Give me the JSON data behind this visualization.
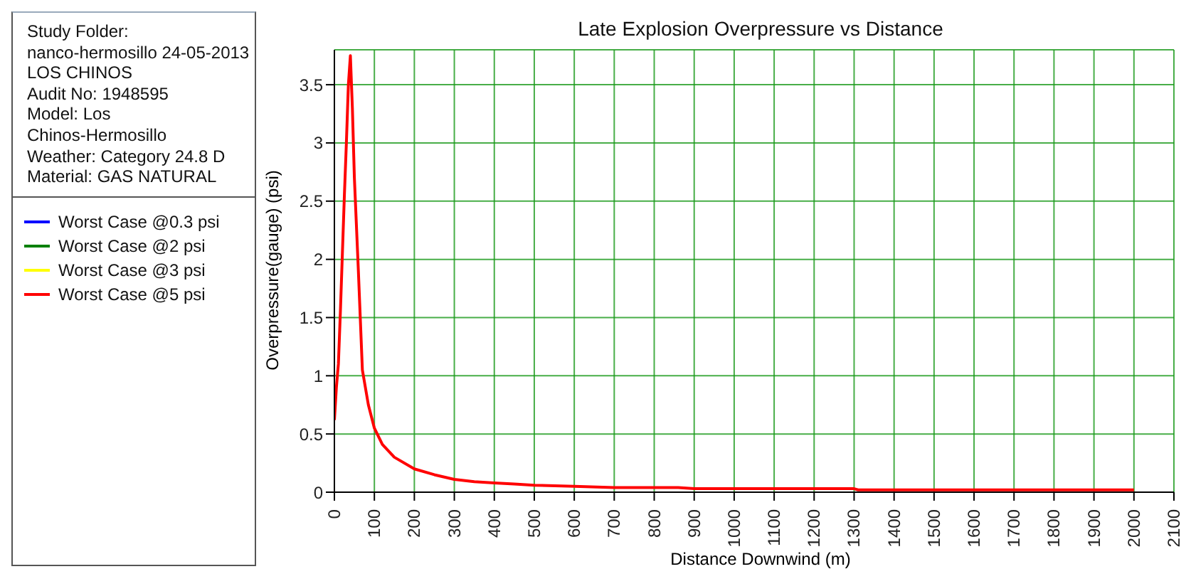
{
  "chart_data": {
    "type": "line",
    "title": "Late Explosion Overpressure vs Distance",
    "xlabel": "Distance Downwind (m)",
    "ylabel": "Overpressure(gauge) (psi)",
    "annotations": [
      "Study Folder:",
      "nanco-hermosillo 24-05-2013",
      "LOS CHINOS",
      "Audit No: 1948595",
      "Model: Los",
      "Chinos-Hermosillo",
      "Weather: Category 24.8 D",
      "Material: GAS NATURAL"
    ],
    "x": [
      0,
      5,
      10,
      15,
      20,
      25,
      30,
      35,
      40,
      45,
      50,
      60,
      70,
      85,
      100,
      120,
      150,
      200,
      250,
      300,
      350,
      400,
      450,
      500,
      600,
      700,
      860,
      900,
      1300,
      1310,
      2000
    ],
    "series": [
      {
        "name": "Worst Case @0.3 psi",
        "color": "#0000ff",
        "values": [
          null,
          null,
          null,
          null,
          null,
          null,
          null,
          null,
          null,
          null,
          null,
          null,
          null,
          null,
          null,
          null,
          null,
          null,
          null,
          null,
          null,
          null,
          null,
          null,
          null,
          null,
          null,
          null,
          null,
          null,
          null
        ]
      },
      {
        "name": "Worst Case @2 psi",
        "color": "#008000",
        "values": [
          null,
          null,
          null,
          null,
          null,
          null,
          null,
          null,
          null,
          null,
          null,
          null,
          null,
          null,
          null,
          null,
          null,
          null,
          null,
          null,
          null,
          null,
          null,
          null,
          null,
          null,
          null,
          null,
          null,
          null,
          null
        ]
      },
      {
        "name": "Worst Case @3 psi",
        "color": "#ffff00",
        "values": [
          null,
          null,
          null,
          null,
          null,
          null,
          null,
          null,
          null,
          null,
          null,
          null,
          null,
          null,
          null,
          null,
          null,
          null,
          null,
          null,
          null,
          null,
          null,
          null,
          null,
          null,
          null,
          null,
          null,
          null,
          null
        ]
      },
      {
        "name": "Worst Case @5 psi",
        "color": "#ff0000",
        "values": [
          0.62,
          0.9,
          1.1,
          1.55,
          2.05,
          2.55,
          3.0,
          3.5,
          3.75,
          3.3,
          2.7,
          1.9,
          1.05,
          0.75,
          0.55,
          0.41,
          0.3,
          0.2,
          0.15,
          0.11,
          0.09,
          0.08,
          0.07,
          0.06,
          0.05,
          0.04,
          0.04,
          0.03,
          0.03,
          0.02,
          0.02
        ]
      }
    ],
    "xlim": [
      0,
      2100
    ],
    "xticks": [
      0,
      100,
      200,
      300,
      400,
      500,
      600,
      700,
      800,
      900,
      1000,
      1100,
      1200,
      1300,
      1400,
      1500,
      1600,
      1700,
      1800,
      1900,
      2000,
      2100
    ],
    "ylim": [
      0,
      3.8
    ],
    "yticks": [
      0,
      0.5,
      1,
      1.5,
      2,
      2.5,
      3,
      3.5
    ],
    "grid": true,
    "legend": "left",
    "marker": "none",
    "line_style": "solid"
  }
}
